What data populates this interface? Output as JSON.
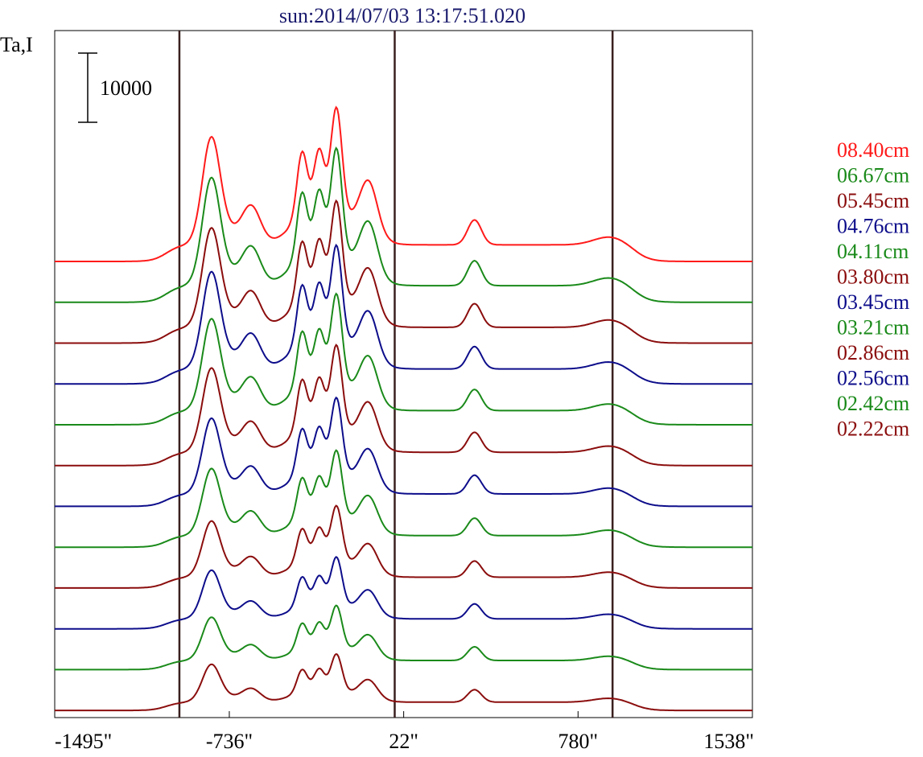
{
  "chart_data": {
    "type": "line",
    "title": "sun:2014/07/03 13:17:51.020",
    "ylabel": "Ta,I",
    "xlabel": "",
    "x_tick_labels": [
      "-1495\"",
      "-736\"",
      "22\"",
      "780\"",
      "1538\""
    ],
    "x_ticks": [
      -1495,
      -736,
      22,
      780,
      1538
    ],
    "xlim": [
      -1495,
      1538
    ],
    "vertical_lines": [
      -953,
      -17,
      930
    ],
    "scale_bar": {
      "label": "10000",
      "value": 10000
    },
    "legend_position": "right",
    "grid": false,
    "colors": {
      "red": "#ff1a1a",
      "green": "#1a8a1a",
      "darkred": "#8b0d0d",
      "blue": "#0d0d8b"
    },
    "series": [
      {
        "name": "08.40cm",
        "color": "#ff1a1a",
        "offset": 0,
        "peak_scale": 1.0,
        "broad_scale": 1.0
      },
      {
        "name": "06.67cm",
        "color": "#1a8a1a",
        "offset": -5900,
        "peak_scale": 1.0,
        "broad_scale": 1.0
      },
      {
        "name": "05.45cm",
        "color": "#8b0d0d",
        "offset": -11800,
        "peak_scale": 0.92,
        "broad_scale": 0.95
      },
      {
        "name": "04.76cm",
        "color": "#0d0d8b",
        "offset": -17700,
        "peak_scale": 0.9,
        "broad_scale": 0.9
      },
      {
        "name": "04.11cm",
        "color": "#1a8a1a",
        "offset": -23600,
        "peak_scale": 0.85,
        "broad_scale": 0.85
      },
      {
        "name": "03.80cm",
        "color": "#8b0d0d",
        "offset": -29500,
        "peak_scale": 0.78,
        "broad_scale": 0.8
      },
      {
        "name": "03.45cm",
        "color": "#0d0d8b",
        "offset": -35400,
        "peak_scale": 0.7,
        "broad_scale": 0.75
      },
      {
        "name": "03.21cm",
        "color": "#1a8a1a",
        "offset": -41300,
        "peak_scale": 0.62,
        "broad_scale": 0.7
      },
      {
        "name": "02.86cm",
        "color": "#8b0d0d",
        "offset": -47200,
        "peak_scale": 0.52,
        "broad_scale": 0.65
      },
      {
        "name": "02.56cm",
        "color": "#0d0d8b",
        "offset": -53100,
        "peak_scale": 0.45,
        "broad_scale": 0.6
      },
      {
        "name": "02.42cm",
        "color": "#1a8a1a",
        "offset": -59000,
        "peak_scale": 0.4,
        "broad_scale": 0.55
      },
      {
        "name": "02.22cm",
        "color": "#8b0d0d",
        "offset": -64900,
        "peak_scale": 0.35,
        "broad_scale": 0.5
      }
    ]
  }
}
